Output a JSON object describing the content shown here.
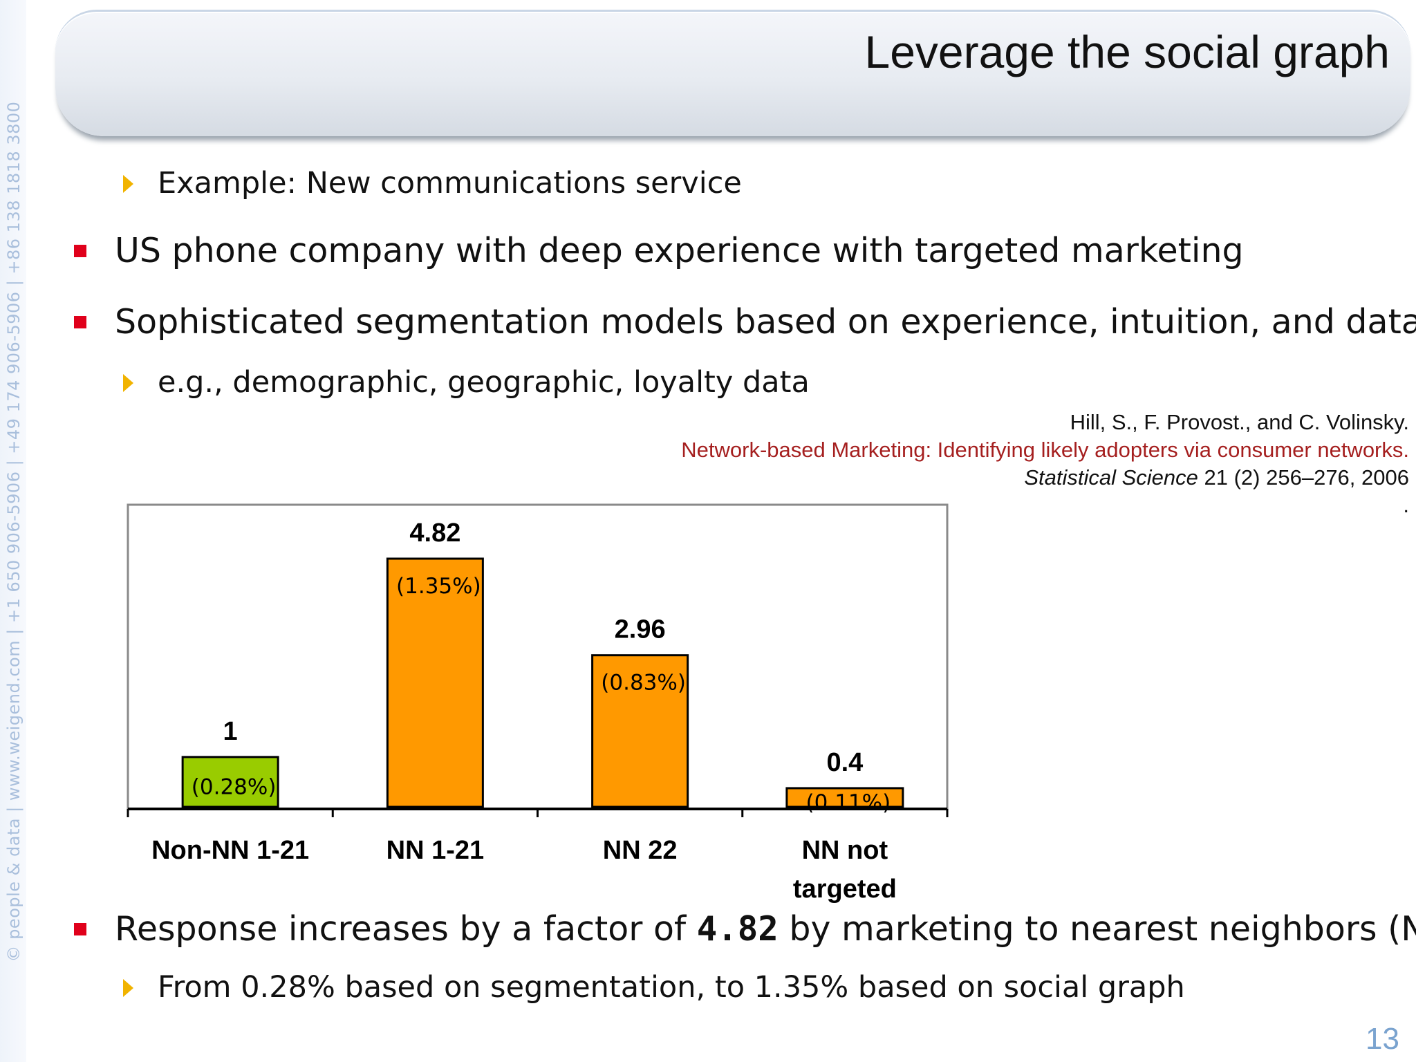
{
  "side_text": "© people & data | www.weigend.com | +1 650 906-5906 | +49 174 906-5906 | +86 138 1818 3800",
  "title": "Leverage the social graph",
  "bullets": {
    "example": "Example: New communications service",
    "phone": "US phone company with deep experience with targeted marketing",
    "models": "Sophisticated segmentation models based on experience, intuition, and data",
    "eg": "e.g., demographic, geographic, loyalty data",
    "response_pre": "Response increases by a factor of ",
    "response_factor": "4.82",
    "response_post": " by marketing to nearest neighbors (NN)",
    "from": "From 0.28% based on segmentation, to 1.35% based on social graph"
  },
  "citation": {
    "authors": "Hill, S., F. Provost., and C. Volinsky.",
    "paper": "Network-based Marketing: Identifying likely adopters via consumer networks.",
    "journal": "Statistical Science",
    "details": " 21 (2) 256–276, 2006",
    "dot": "."
  },
  "page_number": "13",
  "colors": {
    "green": "#99cc00",
    "orange": "#ff9900",
    "bullet_red": "#e0001b",
    "arrow_yellow": "#f1b300"
  },
  "chart_data": {
    "type": "bar",
    "categories": [
      "Non-NN 1-21",
      "NN 1-21",
      "NN 22",
      "NN not targeted"
    ],
    "category_lines": [
      [
        "Non-NN 1-21"
      ],
      [
        "NN 1-21"
      ],
      [
        "NN 22"
      ],
      [
        "NN not",
        "targeted"
      ]
    ],
    "values": [
      1,
      4.82,
      2.96,
      0.4
    ],
    "value_labels": [
      "1",
      "4.82",
      "2.96",
      "0.4"
    ],
    "rate_labels": [
      "(0.28%)",
      "(1.35%)",
      "(0.83%)",
      "(0.11%)"
    ],
    "bar_colors": [
      "#99cc00",
      "#ff9900",
      "#ff9900",
      "#ff9900"
    ],
    "ylim": [
      0,
      5.8
    ],
    "title": "",
    "xlabel": "",
    "ylabel": ""
  }
}
